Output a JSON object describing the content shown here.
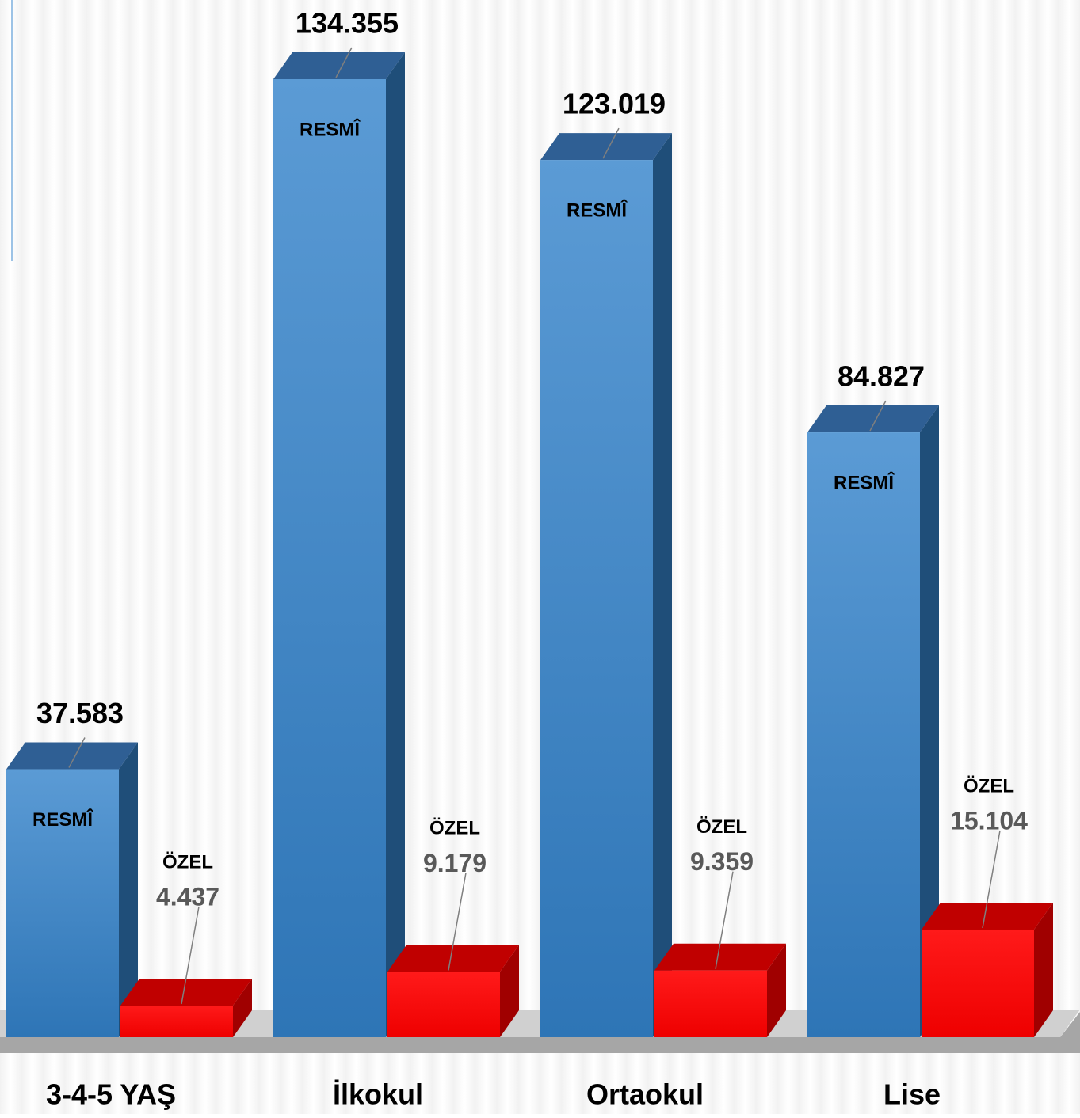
{
  "chart_data": {
    "type": "bar3d",
    "categories": [
      "3-4-5 YAŞ",
      "İlkokul",
      "Ortaokul",
      "Lise"
    ],
    "series": [
      {
        "name": "RESMÎ",
        "color": "#2e75b6",
        "values": [
          37583,
          134355,
          123019,
          84827
        ],
        "value_labels": [
          "37.583",
          "134.355",
          "123.019",
          "84.827"
        ]
      },
      {
        "name": "ÖZEL",
        "color": "#ff0000",
        "values": [
          4437,
          9179,
          9359,
          15104
        ],
        "value_labels": [
          "4.437",
          "9.179",
          "9.359",
          "15.104"
        ]
      }
    ]
  }
}
